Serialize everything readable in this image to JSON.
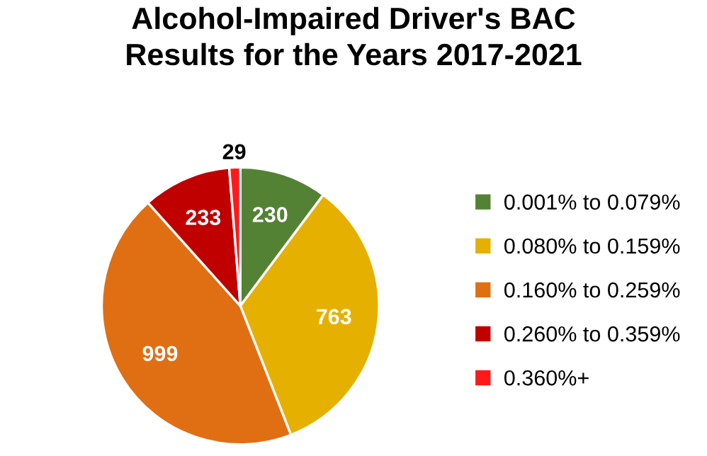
{
  "chart_data": {
    "type": "pie",
    "title": "Alcohol-Impaired Driver's BAC\nResults for the Years 2017-2021",
    "categories": [
      "0.001% to 0.079%",
      "0.080% to 0.159%",
      "0.160% to 0.259%",
      "0.260% to 0.359%",
      "0.360%+"
    ],
    "values": [
      230,
      763,
      999,
      233,
      29
    ],
    "colors": [
      "#548235",
      "#e6b000",
      "#e06f14",
      "#c00000",
      "#ff1a1a"
    ],
    "data_labels": true,
    "legend": "right"
  }
}
